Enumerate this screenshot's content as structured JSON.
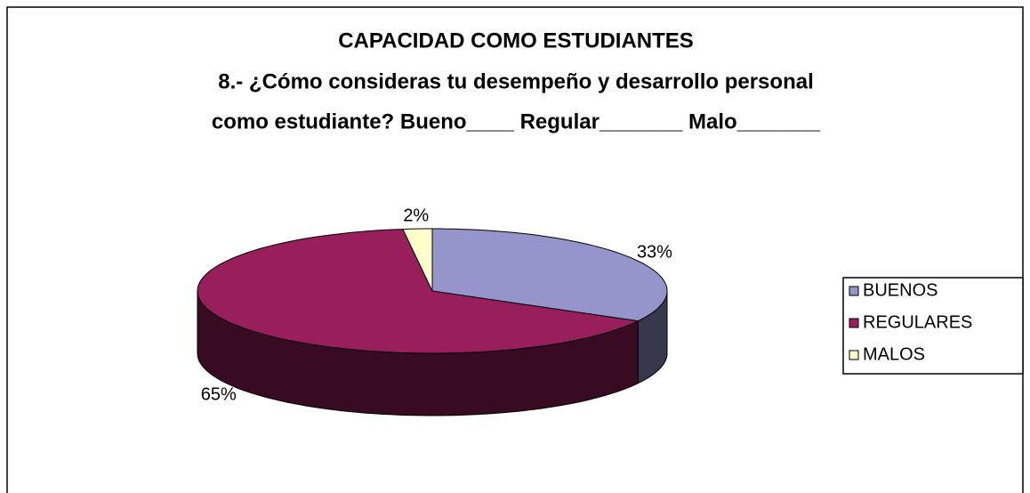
{
  "chart_data": {
    "type": "pie3d",
    "title": [
      "CAPACIDAD COMO ESTUDIANTES",
      "8.- ¿Cómo consideras tu desempeño y desarrollo personal",
      "como estudiante? Bueno____ Regular_______ Malo_______"
    ],
    "categories": [
      "BUENOS",
      "REGULARES",
      "MALOS"
    ],
    "values": [
      33,
      65,
      2
    ],
    "value_labels": [
      "33%",
      "65%",
      "2%"
    ],
    "colors": [
      "#9595cb",
      "#981f5c",
      "#ffffcc"
    ],
    "legend": "right"
  }
}
